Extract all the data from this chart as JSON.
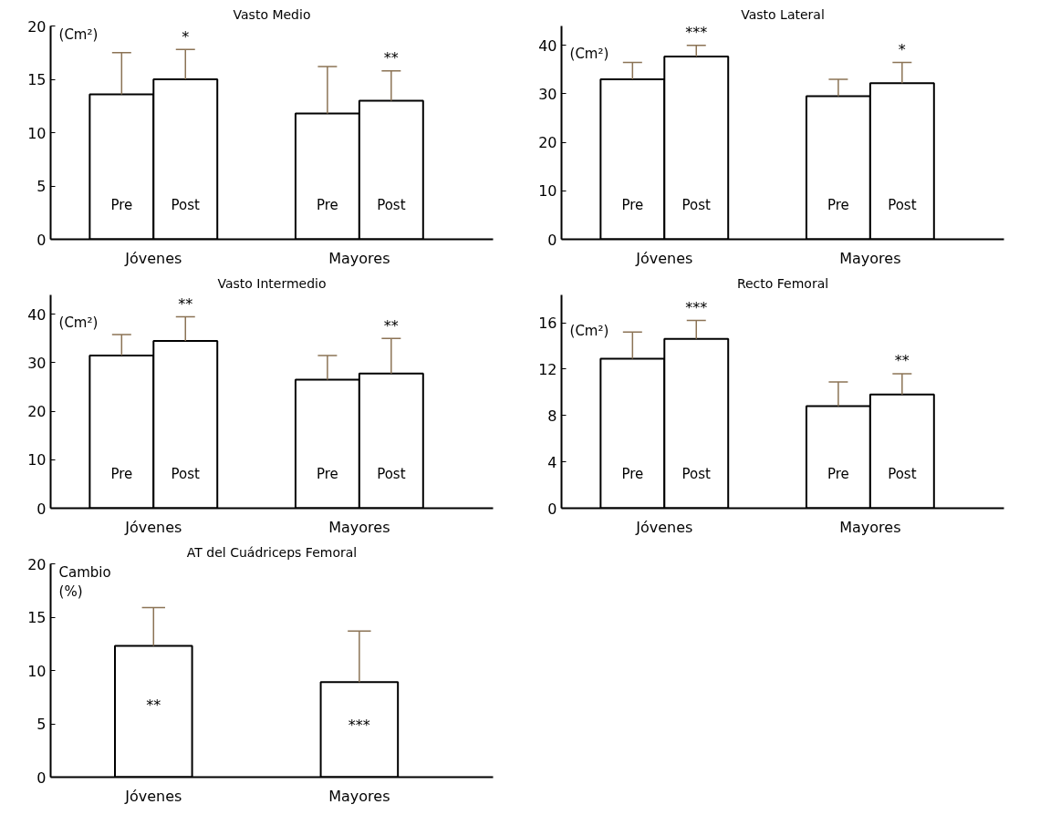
{
  "chart_data": [
    {
      "type": "bar",
      "title": "Vasto Medio",
      "ylabel": "(Cm²)",
      "categories": [
        "Jóvenes",
        "Mayores"
      ],
      "ylim": [
        0,
        20
      ],
      "yticks": [
        0,
        5,
        10,
        15,
        20
      ],
      "grid": false,
      "series": [
        {
          "name": "Pre",
          "color": "#ffffff",
          "values": [
            13.6,
            11.8
          ],
          "errors": [
            [
              13.6,
              17.5
            ],
            [
              11.8,
              16.2
            ]
          ]
        },
        {
          "name": "Post",
          "color": "#ffffff",
          "values": [
            15.0,
            13.0
          ],
          "errors": [
            [
              15.0,
              17.8
            ],
            [
              13.0,
              15.8
            ]
          ],
          "value_labels": [
            "*",
            "**"
          ]
        }
      ]
    },
    {
      "type": "bar",
      "title": "Vasto Lateral",
      "ylabel": "(Cm²)",
      "categories": [
        "Jóvenes",
        "Mayores"
      ],
      "ylim": [
        0,
        44
      ],
      "yticks": [
        0,
        10,
        20,
        30,
        40
      ],
      "grid": false,
      "series": [
        {
          "name": "Pre",
          "color": "#ffffff",
          "values": [
            33.0,
            29.5
          ],
          "errors": [
            [
              33.0,
              36.5
            ],
            [
              29.5,
              33.0
            ]
          ]
        },
        {
          "name": "Post",
          "color": "#ffffff",
          "values": [
            37.7,
            32.2
          ],
          "errors": [
            [
              37.7,
              40.0
            ],
            [
              32.2,
              36.5
            ]
          ],
          "value_labels": [
            "***",
            "*"
          ]
        }
      ]
    },
    {
      "type": "bar",
      "title": "Vasto Intermedio",
      "ylabel": "(Cm²)",
      "categories": [
        "Jóvenes",
        "Mayores"
      ],
      "ylim": [
        0,
        44
      ],
      "yticks": [
        0,
        10,
        20,
        30,
        40
      ],
      "grid": false,
      "series": [
        {
          "name": "Pre",
          "color": "#ffffff",
          "values": [
            31.5,
            26.5
          ],
          "errors": [
            [
              31.5,
              35.8
            ],
            [
              26.5,
              31.5
            ]
          ]
        },
        {
          "name": "Post",
          "color": "#ffffff",
          "values": [
            34.5,
            27.8
          ],
          "errors": [
            [
              34.5,
              39.5
            ],
            [
              27.8,
              35.0
            ]
          ],
          "value_labels": [
            "**",
            "**"
          ]
        }
      ]
    },
    {
      "type": "bar",
      "title": "Recto Femoral",
      "ylabel": "(Cm²)",
      "categories": [
        "Jóvenes",
        "Mayores"
      ],
      "ylim": [
        0,
        18.4
      ],
      "yticks": [
        0,
        4,
        8,
        12,
        16
      ],
      "grid": false,
      "series": [
        {
          "name": "Pre",
          "color": "#ffffff",
          "values": [
            12.9,
            8.8
          ],
          "errors": [
            [
              12.9,
              15.2
            ],
            [
              8.8,
              10.9
            ]
          ]
        },
        {
          "name": "Post",
          "color": "#ffffff",
          "values": [
            14.6,
            9.8
          ],
          "errors": [
            [
              14.6,
              16.2
            ],
            [
              9.8,
              11.6
            ]
          ],
          "value_labels": [
            "***",
            "**"
          ]
        }
      ]
    },
    {
      "type": "bar",
      "title": "AT del Cuádriceps Femoral",
      "ylabel": "Cambio\n(%)",
      "categories": [
        "Jóvenes",
        "Mayores"
      ],
      "ylim": [
        0,
        20
      ],
      "yticks": [
        0,
        5,
        10,
        15,
        20
      ],
      "grid": false,
      "series": [
        {
          "color": "#ffffff",
          "values": [
            12.3,
            8.9
          ],
          "errors": [
            [
              12.3,
              15.9
            ],
            [
              8.9,
              13.7
            ]
          ],
          "value_labels": [
            "**",
            "***"
          ]
        }
      ]
    }
  ]
}
